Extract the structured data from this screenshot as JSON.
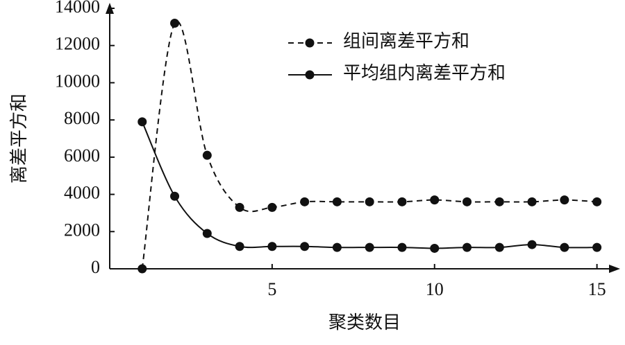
{
  "chart_data": {
    "type": "line",
    "y_label": "离差平方和",
    "x_label": "聚类数目",
    "x": [
      1,
      2,
      3,
      4,
      5,
      6,
      7,
      8,
      9,
      10,
      11,
      12,
      13,
      14,
      15
    ],
    "series": [
      {
        "name": "组间离差平方和",
        "color": "#111111",
        "dashed": true,
        "values": [
          0,
          13200,
          6100,
          3300,
          3300,
          3600,
          3600,
          3600,
          3600,
          3700,
          3600,
          3600,
          3600,
          3700,
          3600
        ]
      },
      {
        "name": "平均组内离差平方和",
        "color": "#111111",
        "dashed": false,
        "values": [
          7900,
          3900,
          1900,
          1200,
          1200,
          1200,
          1150,
          1150,
          1150,
          1100,
          1150,
          1150,
          1300,
          1150,
          1150
        ]
      }
    ],
    "xlim": [
      0,
      15.5
    ],
    "ylim": [
      0,
      14000
    ],
    "xticks": [
      5,
      10,
      15
    ],
    "yticks": [
      0,
      2000,
      4000,
      6000,
      8000,
      10000,
      12000,
      14000
    ],
    "smooth": true,
    "legend": "top-right"
  }
}
